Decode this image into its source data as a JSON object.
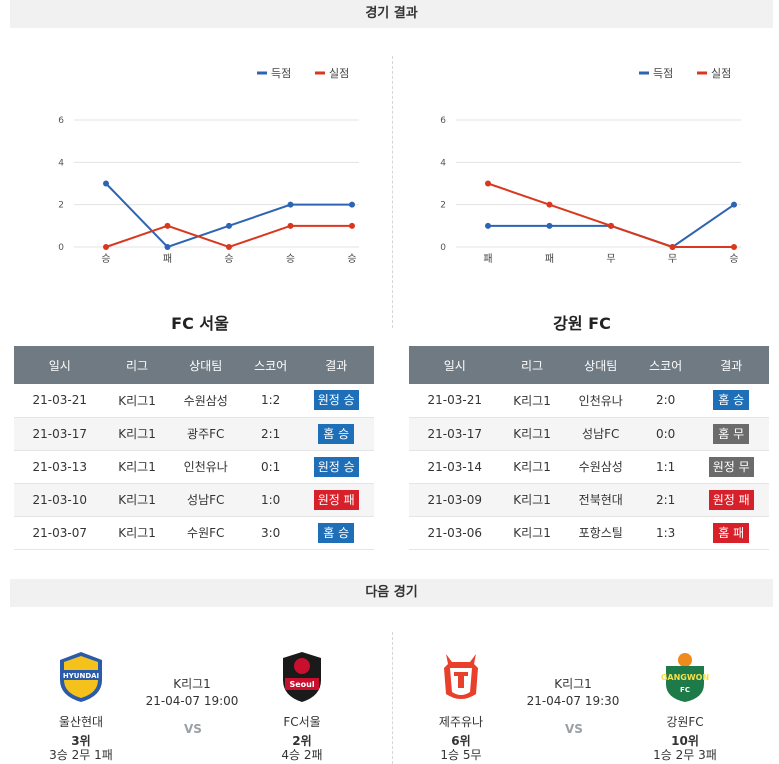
{
  "sections": {
    "results_title": "경기 결과",
    "next_title": "다음 경기"
  },
  "legend": {
    "scored": "득점",
    "conceded": "실점"
  },
  "colors": {
    "scored": "#2d64b3",
    "conceded": "#d9381e",
    "away_win": "#1f6fb8",
    "home_win": "#1f6fb8",
    "away_loss": "#d8202a",
    "home_loss": "#d8202a",
    "draw": "#6b6b6b"
  },
  "chart_data": [
    {
      "type": "line",
      "categories": [
        "승",
        "패",
        "승",
        "승",
        "승"
      ],
      "ylim": [
        0,
        6
      ],
      "yticks": [
        0,
        2,
        4,
        6
      ],
      "grid": true,
      "legend_position": "top-right",
      "series": [
        {
          "name": "득점",
          "values": [
            3,
            0,
            1,
            2,
            2
          ]
        },
        {
          "name": "실점",
          "values": [
            0,
            1,
            0,
            1,
            1
          ]
        }
      ]
    },
    {
      "type": "line",
      "categories": [
        "패",
        "패",
        "무",
        "무",
        "승"
      ],
      "ylim": [
        0,
        6
      ],
      "yticks": [
        0,
        2,
        4,
        6
      ],
      "grid": true,
      "legend_position": "top-right",
      "series": [
        {
          "name": "득점",
          "values": [
            1,
            1,
            1,
            0,
            2
          ]
        },
        {
          "name": "실점",
          "values": [
            3,
            2,
            1,
            0,
            0
          ]
        }
      ]
    }
  ],
  "tables": {
    "headers": [
      "일시",
      "리그",
      "상대팀",
      "스코어",
      "결과"
    ],
    "left": {
      "team": "FC 서울",
      "rows": [
        {
          "date": "21-03-21",
          "league": "K리그1",
          "opponent": "수원삼성",
          "score": "1:2",
          "result": "원정 승",
          "kind": "away_win"
        },
        {
          "date": "21-03-17",
          "league": "K리그1",
          "opponent": "광주FC",
          "score": "2:1",
          "result": "홈 승",
          "kind": "home_win"
        },
        {
          "date": "21-03-13",
          "league": "K리그1",
          "opponent": "인천유나",
          "score": "0:1",
          "result": "원정 승",
          "kind": "away_win"
        },
        {
          "date": "21-03-10",
          "league": "K리그1",
          "opponent": "성남FC",
          "score": "1:0",
          "result": "원정 패",
          "kind": "away_loss"
        },
        {
          "date": "21-03-07",
          "league": "K리그1",
          "opponent": "수원FC",
          "score": "3:0",
          "result": "홈 승",
          "kind": "home_win"
        }
      ]
    },
    "right": {
      "team": "강원 FC",
      "rows": [
        {
          "date": "21-03-21",
          "league": "K리그1",
          "opponent": "인천유나",
          "score": "2:0",
          "result": "홈 승",
          "kind": "home_win"
        },
        {
          "date": "21-03-17",
          "league": "K리그1",
          "opponent": "성남FC",
          "score": "0:0",
          "result": "홈 무",
          "kind": "draw"
        },
        {
          "date": "21-03-14",
          "league": "K리그1",
          "opponent": "수원삼성",
          "score": "1:1",
          "result": "원정 무",
          "kind": "draw"
        },
        {
          "date": "21-03-09",
          "league": "K리그1",
          "opponent": "전북현대",
          "score": "2:1",
          "result": "원정 패",
          "kind": "away_loss"
        },
        {
          "date": "21-03-06",
          "league": "K리그1",
          "opponent": "포항스틸",
          "score": "1:3",
          "result": "홈 패",
          "kind": "home_loss"
        }
      ]
    }
  },
  "next_matches": [
    {
      "league": "K리그1",
      "datetime": "21-04-07 19:00",
      "vs": "VS",
      "home": {
        "name": "울산현대",
        "rank": "3위",
        "record": "3승 2무 1패"
      },
      "away": {
        "name": "FC서울",
        "rank": "2위",
        "record": "4승 2패"
      }
    },
    {
      "league": "K리그1",
      "datetime": "21-04-07 19:30",
      "vs": "VS",
      "home": {
        "name": "제주유나",
        "rank": "6위",
        "record": "1승 5무"
      },
      "away": {
        "name": "강원FC",
        "rank": "10위",
        "record": "1승 2무 3패"
      }
    }
  ]
}
